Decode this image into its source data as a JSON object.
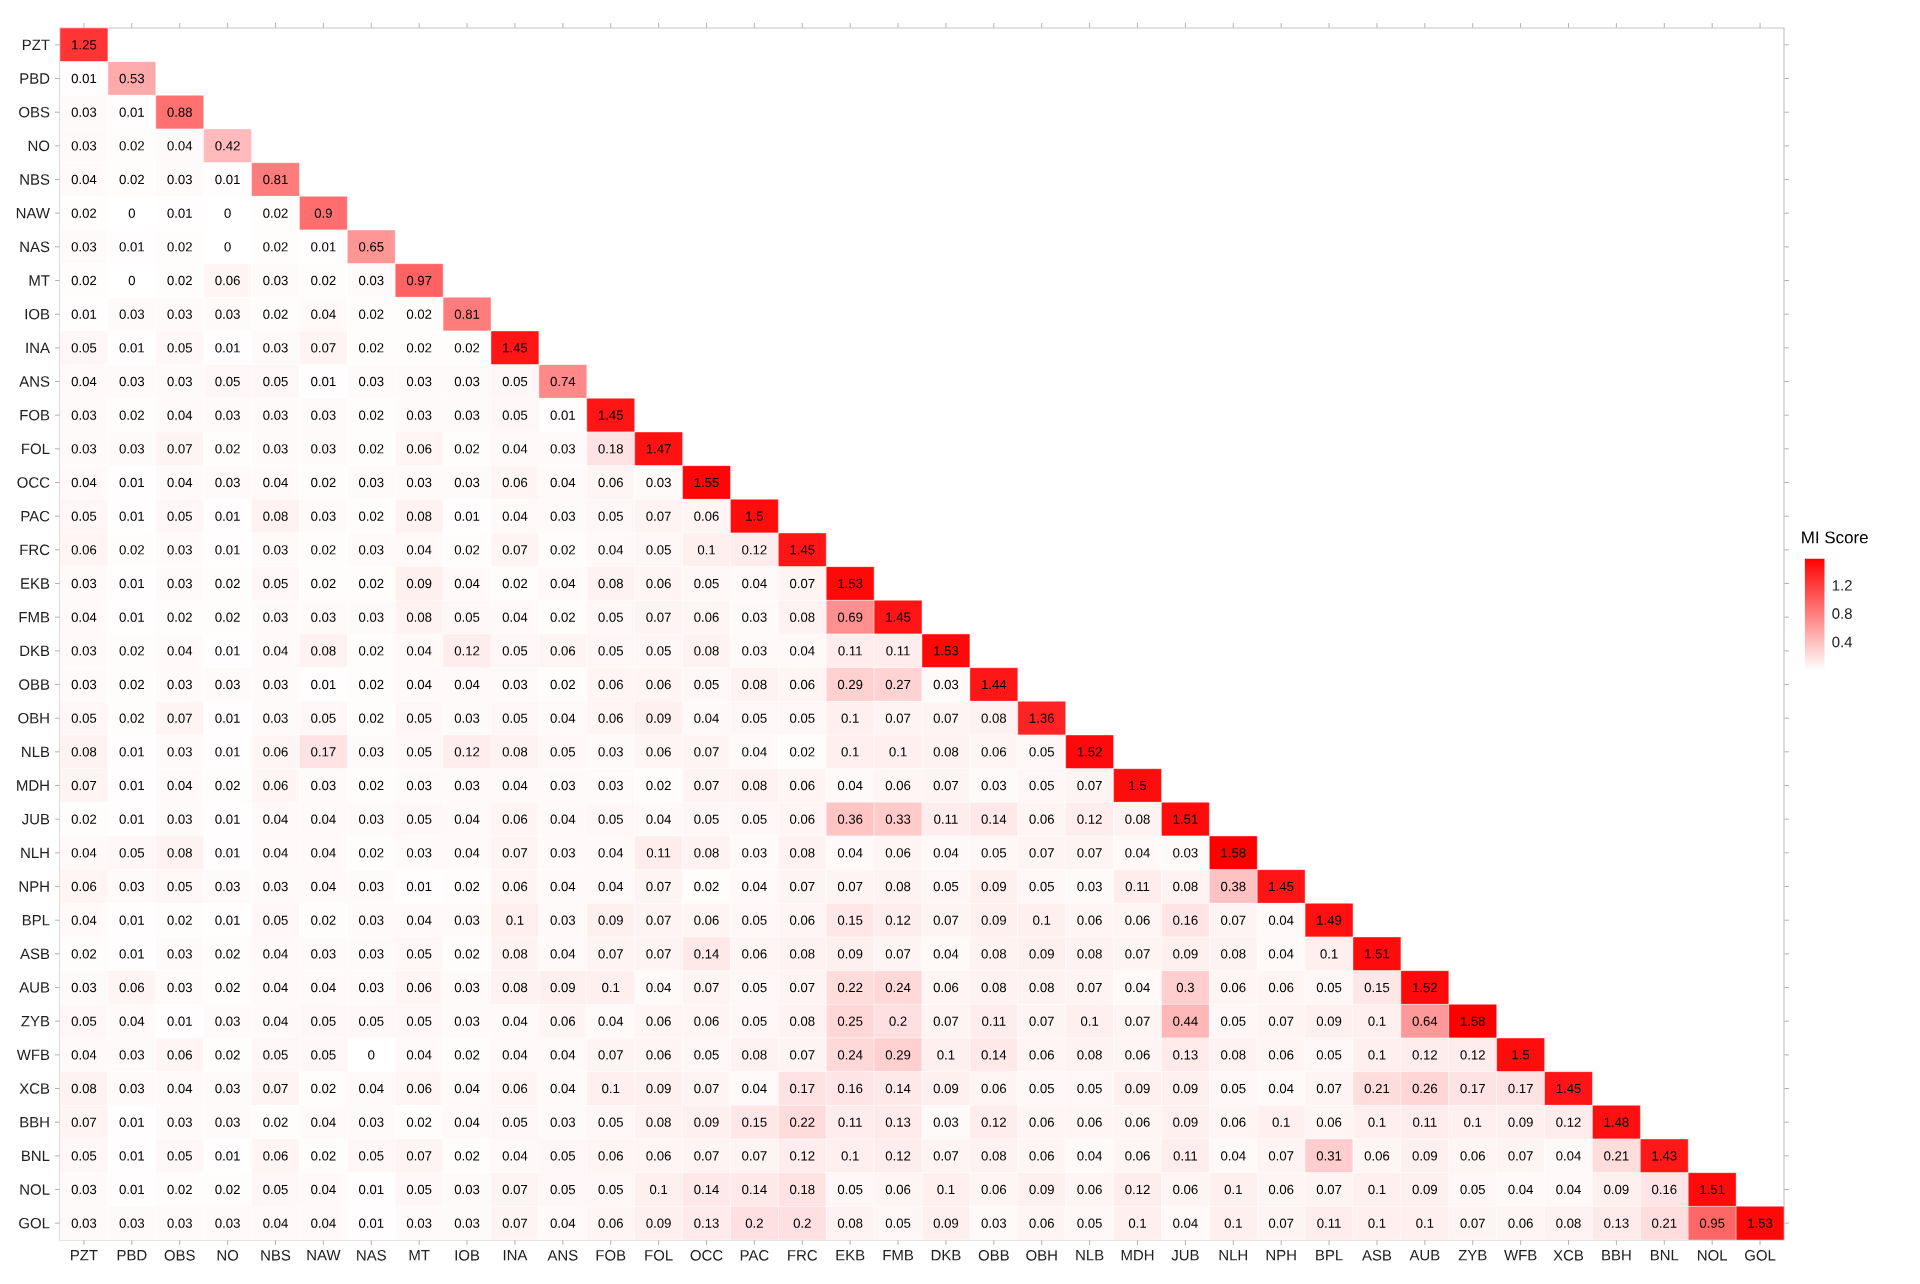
{
  "chart_data": {
    "type": "heatmap",
    "categories": [
      "PZT",
      "PBD",
      "OBS",
      "NO",
      "NBS",
      "NAW",
      "NAS",
      "MT",
      "IOB",
      "INA",
      "ANS",
      "FOB",
      "FOL",
      "OCC",
      "PAC",
      "FRC",
      "EKB",
      "FMB",
      "DKB",
      "OBB",
      "OBH",
      "NLB",
      "MDH",
      "JUB",
      "NLH",
      "NPH",
      "BPL",
      "ASB",
      "AUB",
      "ZYB",
      "WFB",
      "XCB",
      "BBH",
      "BNL",
      "NOL",
      "GOL"
    ],
    "y_categories": [
      "PZT",
      "PBD",
      "OBS",
      "NO",
      "NBS",
      "NAW",
      "NAS",
      "MT",
      "IOB",
      "INA",
      "ANS",
      "FOB",
      "FOL",
      "OCC",
      "PAC",
      "FRC",
      "EKB",
      "FMB",
      "DKB",
      "OBB",
      "OBH",
      "NLB",
      "MDH",
      "JUB",
      "NLH",
      "NPH",
      "BPL",
      "ASB",
      "AUB",
      "ZYB",
      "WFB",
      "XCB",
      "BBH",
      "BNL",
      "NOL",
      "GOL"
    ],
    "cells": [
      [
        1.25,
        null,
        null,
        null,
        null,
        null,
        null,
        null,
        null,
        null,
        null,
        null,
        null,
        null,
        null,
        null,
        null,
        null,
        null,
        null,
        null,
        null,
        null,
        null,
        null,
        null,
        null,
        null,
        null,
        null,
        null,
        null,
        null,
        null,
        null,
        null
      ],
      [
        0.01,
        0.53,
        null,
        null,
        null,
        null,
        null,
        null,
        null,
        null,
        null,
        null,
        null,
        null,
        null,
        null,
        null,
        null,
        null,
        null,
        null,
        null,
        null,
        null,
        null,
        null,
        null,
        null,
        null,
        null,
        null,
        null,
        null,
        null,
        null,
        null
      ],
      [
        0.03,
        0.01,
        0.88,
        null,
        null,
        null,
        null,
        null,
        null,
        null,
        null,
        null,
        null,
        null,
        null,
        null,
        null,
        null,
        null,
        null,
        null,
        null,
        null,
        null,
        null,
        null,
        null,
        null,
        null,
        null,
        null,
        null,
        null,
        null,
        null,
        null
      ],
      [
        0.03,
        0.02,
        0.04,
        0.42,
        null,
        null,
        null,
        null,
        null,
        null,
        null,
        null,
        null,
        null,
        null,
        null,
        null,
        null,
        null,
        null,
        null,
        null,
        null,
        null,
        null,
        null,
        null,
        null,
        null,
        null,
        null,
        null,
        null,
        null,
        null,
        null
      ],
      [
        0.04,
        0.02,
        0.03,
        0.01,
        0.81,
        null,
        null,
        null,
        null,
        null,
        null,
        null,
        null,
        null,
        null,
        null,
        null,
        null,
        null,
        null,
        null,
        null,
        null,
        null,
        null,
        null,
        null,
        null,
        null,
        null,
        null,
        null,
        null,
        null,
        null,
        null
      ],
      [
        0.02,
        0,
        0.01,
        0,
        0.02,
        0.9,
        null,
        null,
        null,
        null,
        null,
        null,
        null,
        null,
        null,
        null,
        null,
        null,
        null,
        null,
        null,
        null,
        null,
        null,
        null,
        null,
        null,
        null,
        null,
        null,
        null,
        null,
        null,
        null,
        null,
        null
      ],
      [
        0.03,
        0.01,
        0.02,
        0,
        0.02,
        0.01,
        0.65,
        null,
        null,
        null,
        null,
        null,
        null,
        null,
        null,
        null,
        null,
        null,
        null,
        null,
        null,
        null,
        null,
        null,
        null,
        null,
        null,
        null,
        null,
        null,
        null,
        null,
        null,
        null,
        null,
        null
      ],
      [
        0.02,
        0,
        0.02,
        0.06,
        0.03,
        0.02,
        0.03,
        0.97,
        null,
        null,
        null,
        null,
        null,
        null,
        null,
        null,
        null,
        null,
        null,
        null,
        null,
        null,
        null,
        null,
        null,
        null,
        null,
        null,
        null,
        null,
        null,
        null,
        null,
        null,
        null,
        null
      ],
      [
        0.01,
        0.03,
        0.03,
        0.03,
        0.02,
        0.04,
        0.02,
        0.02,
        0.81,
        null,
        null,
        null,
        null,
        null,
        null,
        null,
        null,
        null,
        null,
        null,
        null,
        null,
        null,
        null,
        null,
        null,
        null,
        null,
        null,
        null,
        null,
        null,
        null,
        null,
        null,
        null
      ],
      [
        0.05,
        0.01,
        0.05,
        0.01,
        0.03,
        0.07,
        0.02,
        0.02,
        0.02,
        1.45,
        null,
        null,
        null,
        null,
        null,
        null,
        null,
        null,
        null,
        null,
        null,
        null,
        null,
        null,
        null,
        null,
        null,
        null,
        null,
        null,
        null,
        null,
        null,
        null,
        null,
        null
      ],
      [
        0.04,
        0.03,
        0.03,
        0.05,
        0.05,
        0.01,
        0.03,
        0.03,
        0.03,
        0.05,
        0.74,
        null,
        null,
        null,
        null,
        null,
        null,
        null,
        null,
        null,
        null,
        null,
        null,
        null,
        null,
        null,
        null,
        null,
        null,
        null,
        null,
        null,
        null,
        null,
        null,
        null
      ],
      [
        0.03,
        0.02,
        0.04,
        0.03,
        0.03,
        0.03,
        0.02,
        0.03,
        0.03,
        0.05,
        0.01,
        1.45,
        null,
        null,
        null,
        null,
        null,
        null,
        null,
        null,
        null,
        null,
        null,
        null,
        null,
        null,
        null,
        null,
        null,
        null,
        null,
        null,
        null,
        null,
        null,
        null
      ],
      [
        0.03,
        0.03,
        0.07,
        0.02,
        0.03,
        0.03,
        0.02,
        0.06,
        0.02,
        0.04,
        0.03,
        0.18,
        1.47,
        null,
        null,
        null,
        null,
        null,
        null,
        null,
        null,
        null,
        null,
        null,
        null,
        null,
        null,
        null,
        null,
        null,
        null,
        null,
        null,
        null,
        null,
        null
      ],
      [
        0.04,
        0.01,
        0.04,
        0.03,
        0.04,
        0.02,
        0.03,
        0.03,
        0.03,
        0.06,
        0.04,
        0.06,
        0.03,
        1.55,
        null,
        null,
        null,
        null,
        null,
        null,
        null,
        null,
        null,
        null,
        null,
        null,
        null,
        null,
        null,
        null,
        null,
        null,
        null,
        null,
        null,
        null
      ],
      [
        0.05,
        0.01,
        0.05,
        0.01,
        0.08,
        0.03,
        0.02,
        0.08,
        0.01,
        0.04,
        0.03,
        0.05,
        0.07,
        0.06,
        1.5,
        null,
        null,
        null,
        null,
        null,
        null,
        null,
        null,
        null,
        null,
        null,
        null,
        null,
        null,
        null,
        null,
        null,
        null,
        null,
        null,
        null
      ],
      [
        0.06,
        0.02,
        0.03,
        0.01,
        0.03,
        0.02,
        0.03,
        0.04,
        0.02,
        0.07,
        0.02,
        0.04,
        0.05,
        0.1,
        0.12,
        1.45,
        null,
        null,
        null,
        null,
        null,
        null,
        null,
        null,
        null,
        null,
        null,
        null,
        null,
        null,
        null,
        null,
        null,
        null,
        null,
        null
      ],
      [
        0.03,
        0.01,
        0.03,
        0.02,
        0.05,
        0.02,
        0.02,
        0.09,
        0.04,
        0.02,
        0.04,
        0.08,
        0.06,
        0.05,
        0.04,
        0.07,
        1.53,
        null,
        null,
        null,
        null,
        null,
        null,
        null,
        null,
        null,
        null,
        null,
        null,
        null,
        null,
        null,
        null,
        null,
        null,
        null
      ],
      [
        0.04,
        0.01,
        0.02,
        0.02,
        0.03,
        0.03,
        0.03,
        0.08,
        0.05,
        0.04,
        0.02,
        0.05,
        0.07,
        0.06,
        0.03,
        0.08,
        0.69,
        1.45,
        null,
        null,
        null,
        null,
        null,
        null,
        null,
        null,
        null,
        null,
        null,
        null,
        null,
        null,
        null,
        null,
        null,
        null
      ],
      [
        0.03,
        0.02,
        0.04,
        0.01,
        0.04,
        0.08,
        0.02,
        0.04,
        0.12,
        0.05,
        0.06,
        0.05,
        0.05,
        0.08,
        0.03,
        0.04,
        0.11,
        0.11,
        1.53,
        null,
        null,
        null,
        null,
        null,
        null,
        null,
        null,
        null,
        null,
        null,
        null,
        null,
        null,
        null,
        null,
        null
      ],
      [
        0.03,
        0.02,
        0.03,
        0.03,
        0.03,
        0.01,
        0.02,
        0.04,
        0.04,
        0.03,
        0.02,
        0.06,
        0.06,
        0.05,
        0.08,
        0.06,
        0.29,
        0.27,
        0.03,
        1.44,
        null,
        null,
        null,
        null,
        null,
        null,
        null,
        null,
        null,
        null,
        null,
        null,
        null,
        null,
        null,
        null
      ],
      [
        0.05,
        0.02,
        0.07,
        0.01,
        0.03,
        0.05,
        0.02,
        0.05,
        0.03,
        0.05,
        0.04,
        0.06,
        0.09,
        0.04,
        0.05,
        0.05,
        0.1,
        0.07,
        0.07,
        0.08,
        1.36,
        null,
        null,
        null,
        null,
        null,
        null,
        null,
        null,
        null,
        null,
        null,
        null,
        null,
        null,
        null
      ],
      [
        0.08,
        0.01,
        0.03,
        0.01,
        0.06,
        0.17,
        0.03,
        0.05,
        0.12,
        0.08,
        0.05,
        0.03,
        0.06,
        0.07,
        0.04,
        0.02,
        0.1,
        0.1,
        0.08,
        0.06,
        0.05,
        1.52,
        null,
        null,
        null,
        null,
        null,
        null,
        null,
        null,
        null,
        null,
        null,
        null,
        null,
        null
      ],
      [
        0.07,
        0.01,
        0.04,
        0.02,
        0.06,
        0.03,
        0.02,
        0.03,
        0.03,
        0.04,
        0.03,
        0.03,
        0.02,
        0.07,
        0.08,
        0.06,
        0.04,
        0.06,
        0.07,
        0.03,
        0.05,
        0.07,
        1.5,
        null,
        null,
        null,
        null,
        null,
        null,
        null,
        null,
        null,
        null,
        null,
        null,
        null
      ],
      [
        0.02,
        0.01,
        0.03,
        0.01,
        0.04,
        0.04,
        0.03,
        0.05,
        0.04,
        0.06,
        0.04,
        0.05,
        0.04,
        0.05,
        0.05,
        0.06,
        0.36,
        0.33,
        0.11,
        0.14,
        0.06,
        0.12,
        0.08,
        1.51,
        null,
        null,
        null,
        null,
        null,
        null,
        null,
        null,
        null,
        null,
        null,
        null
      ],
      [
        0.04,
        0.05,
        0.08,
        0.01,
        0.04,
        0.04,
        0.02,
        0.03,
        0.04,
        0.07,
        0.03,
        0.04,
        0.11,
        0.08,
        0.03,
        0.08,
        0.04,
        0.06,
        0.04,
        0.05,
        0.07,
        0.07,
        0.04,
        0.03,
        1.58,
        null,
        null,
        null,
        null,
        null,
        null,
        null,
        null,
        null,
        null,
        null
      ],
      [
        0.06,
        0.03,
        0.05,
        0.03,
        0.03,
        0.04,
        0.03,
        0.01,
        0.02,
        0.06,
        0.04,
        0.04,
        0.07,
        0.02,
        0.04,
        0.07,
        0.07,
        0.08,
        0.05,
        0.09,
        0.05,
        0.03,
        0.11,
        0.08,
        0.38,
        1.45,
        null,
        null,
        null,
        null,
        null,
        null,
        null,
        null,
        null,
        null
      ],
      [
        0.04,
        0.01,
        0.02,
        0.01,
        0.05,
        0.02,
        0.03,
        0.04,
        0.03,
        0.1,
        0.03,
        0.09,
        0.07,
        0.06,
        0.05,
        0.06,
        0.15,
        0.12,
        0.07,
        0.09,
        0.1,
        0.06,
        0.06,
        0.16,
        0.07,
        0.04,
        1.49,
        null,
        null,
        null,
        null,
        null,
        null,
        null,
        null,
        null
      ],
      [
        0.02,
        0.01,
        0.03,
        0.02,
        0.04,
        0.03,
        0.03,
        0.05,
        0.02,
        0.08,
        0.04,
        0.07,
        0.07,
        0.14,
        0.06,
        0.08,
        0.09,
        0.07,
        0.04,
        0.08,
        0.09,
        0.08,
        0.07,
        0.09,
        0.08,
        0.04,
        0.1,
        1.51,
        null,
        null,
        null,
        null,
        null,
        null,
        null,
        null
      ],
      [
        0.03,
        0.06,
        0.03,
        0.02,
        0.04,
        0.04,
        0.03,
        0.06,
        0.03,
        0.08,
        0.09,
        0.1,
        0.04,
        0.07,
        0.05,
        0.07,
        0.22,
        0.24,
        0.06,
        0.08,
        0.08,
        0.07,
        0.04,
        0.3,
        0.06,
        0.06,
        0.05,
        0.15,
        1.52,
        null,
        null,
        null,
        null,
        null,
        null,
        null
      ],
      [
        0.05,
        0.04,
        0.01,
        0.03,
        0.04,
        0.05,
        0.05,
        0.05,
        0.03,
        0.04,
        0.06,
        0.04,
        0.06,
        0.06,
        0.05,
        0.08,
        0.25,
        0.2,
        0.07,
        0.11,
        0.07,
        0.1,
        0.07,
        0.44,
        0.05,
        0.07,
        0.09,
        0.1,
        0.64,
        1.58,
        null,
        null,
        null,
        null,
        null,
        null
      ],
      [
        0.04,
        0.03,
        0.06,
        0.02,
        0.05,
        0.05,
        0,
        0.04,
        0.02,
        0.04,
        0.04,
        0.07,
        0.06,
        0.05,
        0.08,
        0.07,
        0.24,
        0.29,
        0.1,
        0.14,
        0.06,
        0.08,
        0.06,
        0.13,
        0.08,
        0.06,
        0.05,
        0.1,
        0.12,
        0.12,
        1.5,
        null,
        null,
        null,
        null,
        null
      ],
      [
        0.08,
        0.03,
        0.04,
        0.03,
        0.07,
        0.02,
        0.04,
        0.06,
        0.04,
        0.06,
        0.04,
        0.1,
        0.09,
        0.07,
        0.04,
        0.17,
        0.16,
        0.14,
        0.09,
        0.06,
        0.05,
        0.05,
        0.09,
        0.09,
        0.05,
        0.04,
        0.07,
        0.21,
        0.26,
        0.17,
        0.17,
        1.45,
        null,
        null,
        null,
        null
      ],
      [
        0.07,
        0.01,
        0.03,
        0.03,
        0.02,
        0.04,
        0.03,
        0.02,
        0.04,
        0.05,
        0.03,
        0.05,
        0.08,
        0.09,
        0.15,
        0.22,
        0.11,
        0.13,
        0.03,
        0.12,
        0.06,
        0.06,
        0.06,
        0.09,
        0.06,
        0.1,
        0.06,
        0.1,
        0.11,
        0.1,
        0.09,
        0.12,
        1.48,
        null,
        null,
        null
      ],
      [
        0.05,
        0.01,
        0.05,
        0.01,
        0.06,
        0.02,
        0.05,
        0.07,
        0.02,
        0.04,
        0.05,
        0.06,
        0.06,
        0.07,
        0.07,
        0.12,
        0.1,
        0.12,
        0.07,
        0.08,
        0.06,
        0.04,
        0.06,
        0.11,
        0.04,
        0.07,
        0.31,
        0.06,
        0.09,
        0.06,
        0.07,
        0.04,
        0.21,
        1.43,
        null,
        null
      ],
      [
        0.03,
        0.01,
        0.02,
        0.02,
        0.05,
        0.04,
        0.01,
        0.05,
        0.03,
        0.07,
        0.05,
        0.05,
        0.1,
        0.14,
        0.14,
        0.18,
        0.05,
        0.06,
        0.1,
        0.06,
        0.09,
        0.06,
        0.12,
        0.06,
        0.1,
        0.06,
        0.07,
        0.1,
        0.09,
        0.05,
        0.04,
        0.04,
        0.09,
        0.16,
        1.51,
        null
      ],
      [
        0.03,
        0.03,
        0.03,
        0.03,
        0.04,
        0.04,
        0.01,
        0.03,
        0.03,
        0.07,
        0.04,
        0.06,
        0.09,
        0.13,
        0.2,
        0.2,
        0.08,
        0.05,
        0.09,
        0.03,
        0.06,
        0.05,
        0.1,
        0.04,
        0.1,
        0.07,
        0.11,
        0.1,
        0.1,
        0.07,
        0.06,
        0.08,
        0.13,
        0.21,
        0.95,
        1.53
      ]
    ],
    "data_labels": true,
    "clim": [
      0,
      1.58
    ],
    "cticks": [
      0.4,
      0.8,
      1.2
    ],
    "clabel": "MI Score"
  }
}
